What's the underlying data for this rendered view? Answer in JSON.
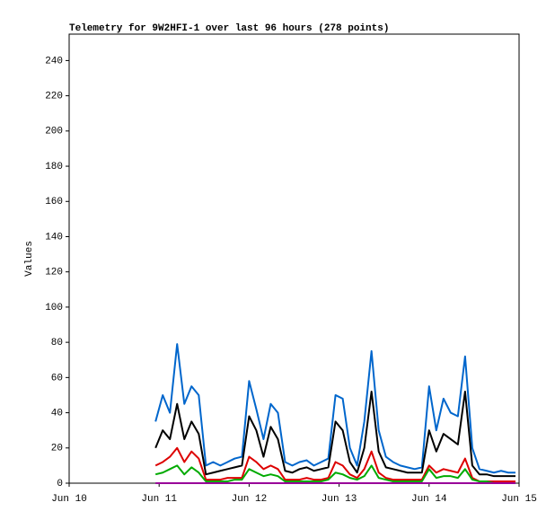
{
  "chart_data": {
    "type": "line",
    "title": "Telemetry for 9W2HFI-1 over last 96 hours (278 points)",
    "y_label": "Values",
    "x": [
      0.96,
      1.04,
      1.12,
      1.2,
      1.28,
      1.36,
      1.44,
      1.52,
      1.6,
      1.68,
      1.76,
      1.84,
      1.92,
      2.0,
      2.08,
      2.16,
      2.24,
      2.32,
      2.4,
      2.48,
      2.56,
      2.64,
      2.72,
      2.8,
      2.88,
      2.96,
      3.04,
      3.12,
      3.2,
      3.28,
      3.36,
      3.44,
      3.52,
      3.6,
      3.68,
      3.76,
      3.84,
      3.92,
      4.0,
      4.08,
      4.16,
      4.24,
      4.32,
      4.4,
      4.48,
      4.56,
      4.64,
      4.72,
      4.8,
      4.88,
      4.96
    ],
    "series": [
      {
        "color": "#0066cc",
        "values": [
          35,
          50,
          40,
          79,
          45,
          55,
          50,
          10,
          12,
          10,
          12,
          14,
          15,
          58,
          42,
          25,
          45,
          40,
          12,
          10,
          12,
          13,
          10,
          12,
          14,
          50,
          48,
          20,
          10,
          35,
          75,
          30,
          15,
          12,
          10,
          9,
          8,
          9,
          55,
          30,
          48,
          40,
          38,
          72,
          20,
          8,
          7,
          6,
          7,
          6,
          6
        ]
      },
      {
        "color": "#000000",
        "values": [
          20,
          30,
          25,
          45,
          25,
          35,
          28,
          5,
          6,
          7,
          8,
          9,
          10,
          38,
          30,
          15,
          32,
          25,
          7,
          6,
          8,
          9,
          7,
          8,
          9,
          35,
          30,
          12,
          6,
          20,
          52,
          18,
          9,
          8,
          7,
          6,
          6,
          6,
          30,
          18,
          28,
          25,
          22,
          52,
          10,
          5,
          5,
          4,
          4,
          4,
          4
        ]
      },
      {
        "color": "#dd0000",
        "values": [
          10,
          12,
          15,
          20,
          12,
          18,
          14,
          2,
          2,
          2,
          3,
          3,
          3,
          15,
          12,
          8,
          10,
          8,
          2,
          2,
          2,
          3,
          2,
          2,
          3,
          12,
          10,
          5,
          3,
          8,
          18,
          6,
          3,
          2,
          2,
          2,
          2,
          2,
          10,
          6,
          8,
          7,
          6,
          14,
          3,
          1,
          1,
          1,
          1,
          1,
          1
        ]
      },
      {
        "color": "#00aa00",
        "values": [
          5,
          6,
          8,
          10,
          5,
          9,
          6,
          1,
          1,
          1,
          1,
          2,
          2,
          8,
          6,
          4,
          5,
          4,
          1,
          1,
          1,
          1,
          1,
          1,
          2,
          6,
          5,
          3,
          2,
          4,
          10,
          3,
          2,
          1,
          1,
          1,
          1,
          1,
          8,
          3,
          4,
          4,
          3,
          8,
          2,
          1,
          1,
          0,
          0,
          0,
          0
        ]
      },
      {
        "color": "#990099",
        "values": [
          0,
          0,
          0,
          0,
          0,
          0,
          0,
          0,
          0,
          0,
          0,
          0,
          0,
          0,
          0,
          0,
          0,
          0,
          0,
          0,
          0,
          0,
          0,
          0,
          0,
          0,
          0,
          0,
          0,
          0,
          0,
          0,
          0,
          0,
          0,
          0,
          0,
          0,
          0,
          0,
          0,
          0,
          0,
          0,
          0,
          0,
          0,
          0,
          0,
          0,
          0
        ]
      }
    ],
    "xlim": [
      0,
      5
    ],
    "xticks": [
      {
        "value": 0,
        "label": "Jun 10"
      },
      {
        "value": 1,
        "label": "Jun 11"
      },
      {
        "value": 2,
        "label": "Jun 12"
      },
      {
        "value": 3,
        "label": "Jun 13"
      },
      {
        "value": 4,
        "label": "Jun 14"
      },
      {
        "value": 5,
        "label": "Jun 15"
      }
    ],
    "ylim": [
      0,
      255
    ],
    "yticks": [
      0,
      20,
      40,
      60,
      80,
      100,
      120,
      140,
      160,
      180,
      200,
      220,
      240
    ]
  }
}
